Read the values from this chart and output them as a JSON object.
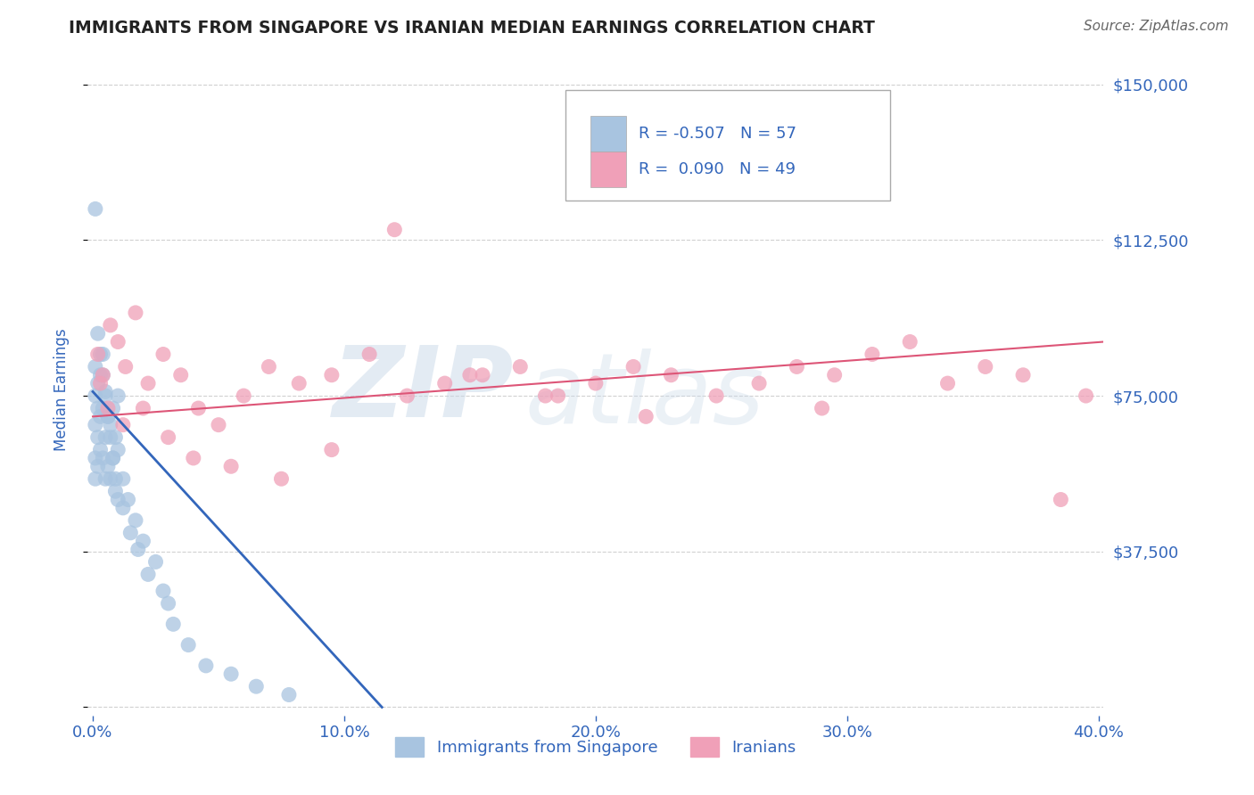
{
  "title": "IMMIGRANTS FROM SINGAPORE VS IRANIAN MEDIAN EARNINGS CORRELATION CHART",
  "source_text": "Source: ZipAtlas.com",
  "ylabel": "Median Earnings",
  "xlim": [
    -0.002,
    0.402
  ],
  "ylim": [
    -2000,
    155000
  ],
  "yticks": [
    0,
    37500,
    75000,
    112500,
    150000
  ],
  "ytick_labels": [
    "",
    "$37,500",
    "$75,000",
    "$112,500",
    "$150,000"
  ],
  "xticks": [
    0.0,
    0.1,
    0.2,
    0.3,
    0.4
  ],
  "xtick_labels": [
    "0.0%",
    "10.0%",
    "20.0%",
    "30.0%",
    "40.0%"
  ],
  "background_color": "#ffffff",
  "grid_color": "#cccccc",
  "blue_color": "#a8c4e0",
  "pink_color": "#f0a0b8",
  "blue_line_color": "#3366bb",
  "pink_line_color": "#dd5577",
  "title_color": "#222222",
  "tick_label_color": "#3366bb",
  "legend_text_color": "#3366bb",
  "legend_label1": "Immigrants from Singapore",
  "legend_label2": "Iranians",
  "watermark": "ZIPAtlas",
  "blue_trend_x": [
    0.0,
    0.115
  ],
  "blue_trend_y": [
    76000,
    0
  ],
  "pink_trend_x": [
    0.0,
    0.402
  ],
  "pink_trend_y": [
    70000,
    88000
  ],
  "blue_scatter_x": [
    0.001,
    0.001,
    0.001,
    0.001,
    0.001,
    0.002,
    0.002,
    0.002,
    0.002,
    0.003,
    0.003,
    0.003,
    0.004,
    0.004,
    0.004,
    0.005,
    0.005,
    0.005,
    0.006,
    0.006,
    0.007,
    0.007,
    0.008,
    0.008,
    0.009,
    0.009,
    0.01,
    0.01,
    0.012,
    0.012,
    0.014,
    0.015,
    0.017,
    0.018,
    0.02,
    0.022,
    0.025,
    0.028,
    0.03,
    0.032,
    0.038,
    0.045,
    0.055,
    0.065,
    0.078,
    0.001,
    0.002,
    0.003,
    0.004,
    0.005,
    0.006,
    0.007,
    0.008,
    0.009,
    0.01
  ],
  "blue_scatter_y": [
    82000,
    75000,
    68000,
    60000,
    55000,
    78000,
    72000,
    65000,
    58000,
    80000,
    70000,
    62000,
    85000,
    72000,
    60000,
    76000,
    65000,
    55000,
    70000,
    58000,
    68000,
    55000,
    72000,
    60000,
    65000,
    52000,
    75000,
    62000,
    55000,
    48000,
    50000,
    42000,
    45000,
    38000,
    40000,
    32000,
    35000,
    28000,
    25000,
    20000,
    15000,
    10000,
    8000,
    5000,
    3000,
    120000,
    90000,
    85000,
    80000,
    75000,
    70000,
    65000,
    60000,
    55000,
    50000
  ],
  "pink_scatter_x": [
    0.002,
    0.004,
    0.007,
    0.01,
    0.013,
    0.017,
    0.022,
    0.028,
    0.035,
    0.042,
    0.05,
    0.06,
    0.07,
    0.082,
    0.095,
    0.11,
    0.125,
    0.14,
    0.155,
    0.17,
    0.185,
    0.2,
    0.215,
    0.23,
    0.248,
    0.265,
    0.28,
    0.295,
    0.31,
    0.325,
    0.34,
    0.355,
    0.37,
    0.385,
    0.395,
    0.003,
    0.006,
    0.012,
    0.02,
    0.03,
    0.04,
    0.055,
    0.075,
    0.095,
    0.12,
    0.15,
    0.18,
    0.22,
    0.29
  ],
  "pink_scatter_y": [
    85000,
    80000,
    92000,
    88000,
    82000,
    95000,
    78000,
    85000,
    80000,
    72000,
    68000,
    75000,
    82000,
    78000,
    80000,
    85000,
    75000,
    78000,
    80000,
    82000,
    75000,
    78000,
    82000,
    80000,
    75000,
    78000,
    82000,
    80000,
    85000,
    88000,
    78000,
    82000,
    80000,
    50000,
    75000,
    78000,
    72000,
    68000,
    72000,
    65000,
    60000,
    58000,
    55000,
    62000,
    115000,
    80000,
    75000,
    70000,
    72000
  ]
}
